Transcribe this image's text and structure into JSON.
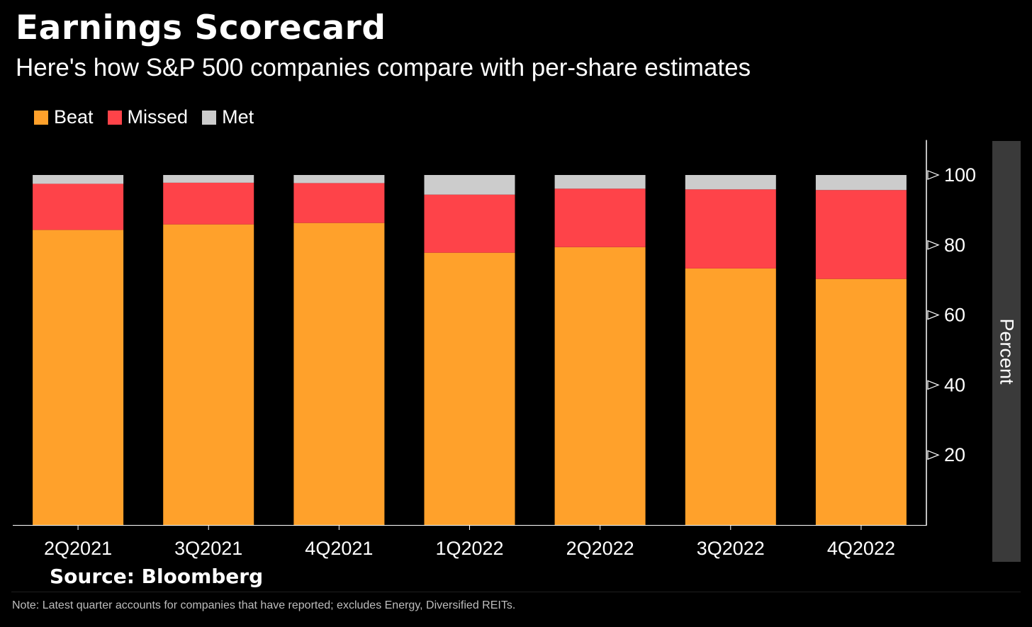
{
  "title": "Earnings Scorecard",
  "subtitle": "Here's how S&P 500 companies compare with per-share estimates",
  "source": "Source:  Bloomberg",
  "note": "Note: Latest quarter accounts for companies that have reported; excludes Energy, Diversified REITs.",
  "colors": {
    "beat": "#ffa12b",
    "missed": "#fe4349",
    "met": "#cccccc",
    "background": "#000000",
    "axis_panel": "#3a3a3a"
  },
  "chart_data": {
    "type": "bar",
    "stacked": true,
    "categories": [
      "2Q2021",
      "3Q2021",
      "4Q2021",
      "1Q2022",
      "2Q2022",
      "3Q2022",
      "4Q2022"
    ],
    "series": [
      {
        "name": "Beat",
        "values": [
          84.3,
          85.9,
          86.3,
          77.8,
          79.4,
          73.3,
          70.3
        ]
      },
      {
        "name": "Missed",
        "values": [
          13.2,
          11.9,
          11.4,
          16.6,
          16.7,
          22.6,
          25.4
        ]
      },
      {
        "name": "Met",
        "values": [
          2.5,
          2.2,
          2.3,
          5.6,
          3.9,
          4.1,
          4.3
        ]
      }
    ],
    "ylabel": "Percent",
    "xlabel": "",
    "ylim": [
      0,
      110
    ],
    "yticks": [
      20,
      40,
      60,
      80,
      100
    ],
    "y_axis_position": "right",
    "legend_position": "top-left",
    "grid": false
  }
}
